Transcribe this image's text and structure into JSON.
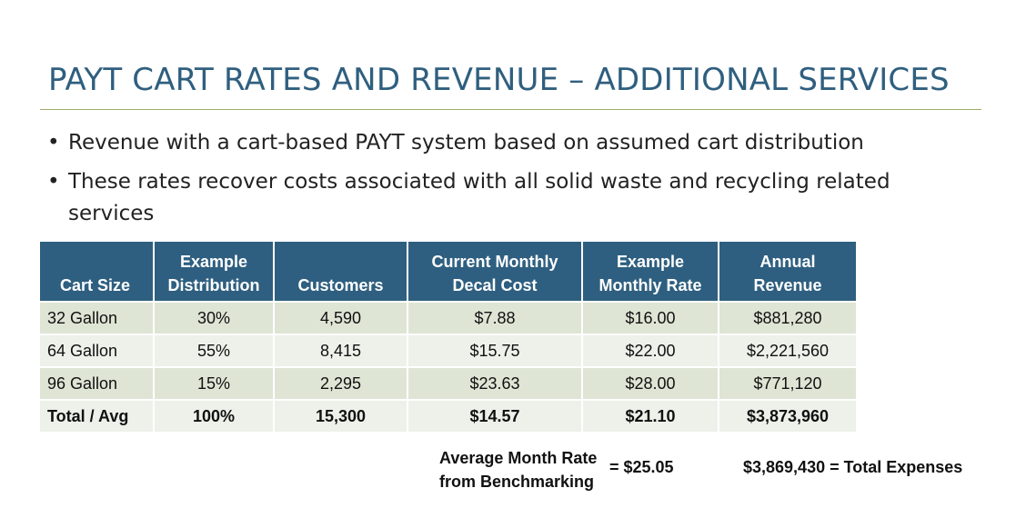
{
  "slide": {
    "title": "PAYT CART RATES AND REVENUE – ADDITIONAL SERVICES",
    "bullets": [
      "Revenue with a cart-based PAYT system based on assumed cart distribution",
      "These rates recover costs associated with all solid waste and recycling related services"
    ]
  },
  "table": {
    "headers": [
      "Cart Size",
      [
        "Example",
        "Distribution"
      ],
      "Customers",
      [
        "Current Monthly",
        "Decal Cost"
      ],
      [
        "Example",
        "Monthly Rate"
      ],
      [
        "Annual",
        "Revenue"
      ]
    ],
    "rows": [
      [
        "32 Gallon",
        "30%",
        "4,590",
        "$7.88",
        "$16.00",
        "$881,280"
      ],
      [
        "64 Gallon",
        "55%",
        "8,415",
        "$15.75",
        "$22.00",
        "$2,221,560"
      ],
      [
        "96 Gallon",
        "15%",
        "2,295",
        "$23.63",
        "$28.00",
        "$771,120"
      ]
    ],
    "total": [
      "Total / Avg",
      "100%",
      "15,300",
      "$14.57",
      "$21.10",
      "$3,873,960"
    ]
  },
  "footer": {
    "benchmark_label": [
      "Average Month Rate",
      "from Benchmarking"
    ],
    "benchmark_value": "= $25.05",
    "expenses": "$3,869,430 =  Total Expenses"
  }
}
